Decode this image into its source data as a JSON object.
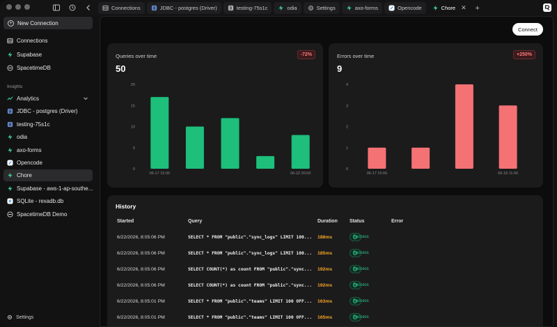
{
  "titlebar": {
    "tabs": [
      {
        "label": "Connections",
        "icon": "table-icon",
        "color": "#bbbbbb"
      },
      {
        "label": "JDBC - postgres (Driver)",
        "icon": "database-icon",
        "color": "#6a8fd4"
      },
      {
        "label": "testing-75s1c",
        "icon": "database-icon",
        "color": "#bbbbbb"
      },
      {
        "label": "odia",
        "icon": "supabase-icon",
        "color": "#3ecf8e"
      },
      {
        "label": "Settings",
        "icon": "gear-icon",
        "color": "#bbbbbb"
      },
      {
        "label": "axo-forms",
        "icon": "supabase-icon",
        "color": "#3ecf8e"
      },
      {
        "label": "Opencode",
        "icon": "opencode-icon",
        "color": "#4c8dff"
      },
      {
        "label": "Chore",
        "icon": "supabase-icon",
        "color": "#3ecf8e",
        "active": true
      }
    ]
  },
  "sidebar": {
    "new_connection": "New Connection",
    "top_items": [
      {
        "label": "Connections",
        "icon": "table-icon"
      },
      {
        "label": "Supabase",
        "icon": "supabase-icon"
      },
      {
        "label": "SpacetimeDB",
        "icon": "spacetime-icon"
      }
    ],
    "section_label": "Insights",
    "insight_items": [
      {
        "label": "Analytics",
        "icon": "chart-icon"
      },
      {
        "label": "JDBC - postgres (Driver)",
        "icon": "database-icon"
      },
      {
        "label": "testing-75s1c",
        "icon": "database-icon"
      },
      {
        "label": "odia",
        "icon": "supabase-icon"
      },
      {
        "label": "axo-forms",
        "icon": "supabase-icon"
      },
      {
        "label": "Opencode",
        "icon": "opencode-icon"
      },
      {
        "label": "Chore",
        "icon": "supabase-icon",
        "active": true
      },
      {
        "label": "Supabase - aws-1-ap-southe...",
        "icon": "supabase-icon"
      },
      {
        "label": "SQLite - rexadb.db",
        "icon": "sqlite-icon"
      },
      {
        "label": "SpacetimeDB Demo",
        "icon": "spacetime-icon"
      }
    ],
    "settings": "Settings"
  },
  "main": {
    "connect_label": "Connect",
    "queries_card": {
      "title": "Queries over time",
      "value": "50",
      "badge": "-72%"
    },
    "errors_card": {
      "title": "Errors over time",
      "value": "9",
      "badge": "+250%"
    },
    "history": {
      "title": "History",
      "columns": [
        "Started",
        "Query",
        "Duration",
        "Status",
        "Error"
      ],
      "rows": [
        {
          "started": "6/22/2026, 8:05:06 PM",
          "query": "SELECT * FROM \"public\".\"sync_logs\" LIMIT 100...",
          "duration": "188ms",
          "status": "Success"
        },
        {
          "started": "6/22/2026, 8:05:06 PM",
          "query": "SELECT * FROM \"public\".\"sync_logs\" LIMIT 100...",
          "duration": "185ms",
          "status": "Success"
        },
        {
          "started": "6/22/2026, 8:05:06 PM",
          "query": "SELECT COUNT(*) as count FROM \"public\".\"sync...",
          "duration": "192ms",
          "status": "Success"
        },
        {
          "started": "6/22/2026, 8:05:06 PM",
          "query": "SELECT COUNT(*) as count FROM \"public\".\"sync...",
          "duration": "192ms",
          "status": "Success"
        },
        {
          "started": "6/22/2026, 8:05:01 PM",
          "query": "SELECT * FROM \"public\".\"teams\" LIMIT 100 OFF...",
          "duration": "163ms",
          "status": "Success"
        },
        {
          "started": "6/22/2026, 8:05:01 PM",
          "query": "SELECT * FROM \"public\".\"teams\" LIMIT 100 OFF...",
          "duration": "165ms",
          "status": "Success"
        }
      ]
    }
  },
  "chart_data": [
    {
      "type": "bar",
      "title": "Queries over time",
      "categories": [
        "06-17 15:00",
        "",
        "",
        "",
        "06-22 20:00"
      ],
      "values": [
        17,
        10,
        12,
        3,
        8
      ],
      "ylim": [
        0,
        20
      ],
      "yticks": [
        0,
        5,
        10,
        15,
        20
      ],
      "color": "#1dbf7a"
    },
    {
      "type": "bar",
      "title": "Errors over time",
      "categories": [
        "06-17 15:00",
        "",
        "",
        "06-18 11:00"
      ],
      "values": [
        1,
        1,
        4,
        3
      ],
      "ylim": [
        0,
        4
      ],
      "yticks": [
        0,
        1,
        2,
        3,
        4
      ],
      "color": "#f47174"
    }
  ]
}
